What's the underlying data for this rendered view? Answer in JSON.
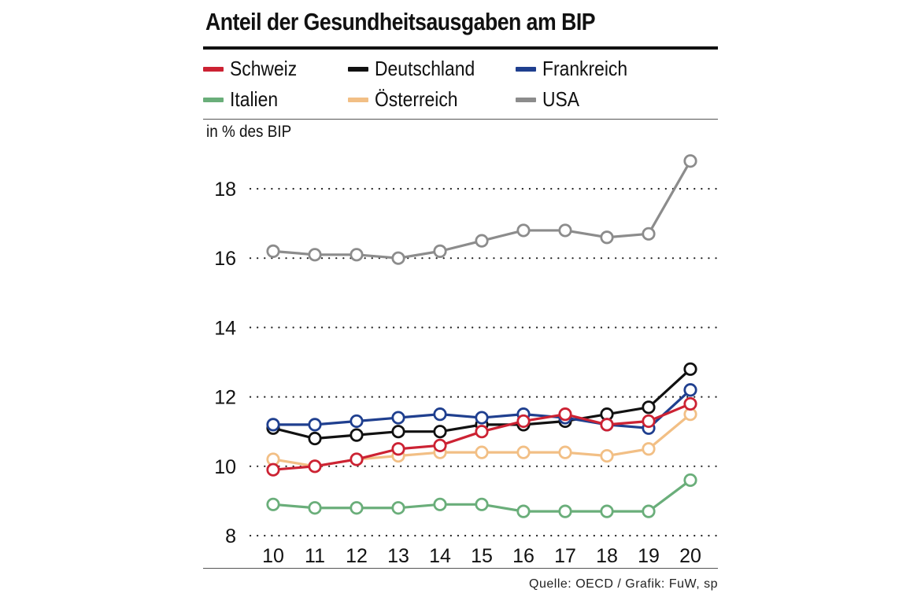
{
  "chart_data": {
    "type": "line",
    "title": "Anteil der Gesundheitsausgaben am BIP",
    "ylabel": "in % des BIP",
    "xlabel": "",
    "x": [
      "10",
      "11",
      "12",
      "13",
      "14",
      "15",
      "16",
      "17",
      "18",
      "19",
      "20"
    ],
    "ylim": [
      8,
      19
    ],
    "yticks": [
      "8",
      "10",
      "12",
      "14",
      "16",
      "18"
    ],
    "grid": "horizontal dotted",
    "legend_position": "top",
    "series": [
      {
        "name": "Schweiz",
        "color": "#cc2233",
        "values": [
          9.9,
          10.0,
          10.2,
          10.5,
          10.6,
          11.0,
          11.3,
          11.5,
          11.2,
          11.3,
          11.8
        ]
      },
      {
        "name": "Deutschland",
        "color": "#111111",
        "values": [
          11.1,
          10.8,
          10.9,
          11.0,
          11.0,
          11.2,
          11.2,
          11.3,
          11.5,
          11.7,
          12.8
        ]
      },
      {
        "name": "Frankreich",
        "color": "#1f3f8f",
        "values": [
          11.2,
          11.2,
          11.3,
          11.4,
          11.5,
          11.4,
          11.5,
          11.4,
          11.2,
          11.1,
          12.2
        ]
      },
      {
        "name": "Italien",
        "color": "#6aae7a",
        "values": [
          8.9,
          8.8,
          8.8,
          8.8,
          8.9,
          8.9,
          8.7,
          8.7,
          8.7,
          8.7,
          9.6
        ]
      },
      {
        "name": "Österreich",
        "color": "#f2bf85",
        "values": [
          10.2,
          10.0,
          10.2,
          10.3,
          10.4,
          10.4,
          10.4,
          10.4,
          10.3,
          10.5,
          11.5
        ]
      },
      {
        "name": "USA",
        "color": "#8c8c8c",
        "values": [
          16.2,
          16.1,
          16.1,
          16.0,
          16.2,
          16.5,
          16.8,
          16.8,
          16.6,
          16.7,
          18.8
        ]
      }
    ],
    "draw_order": [
      "USA",
      "Italien",
      "Österreich",
      "Deutschland",
      "Frankreich",
      "Schweiz"
    ],
    "source": "Quelle: OECD / Grafik: FuW, sp"
  }
}
